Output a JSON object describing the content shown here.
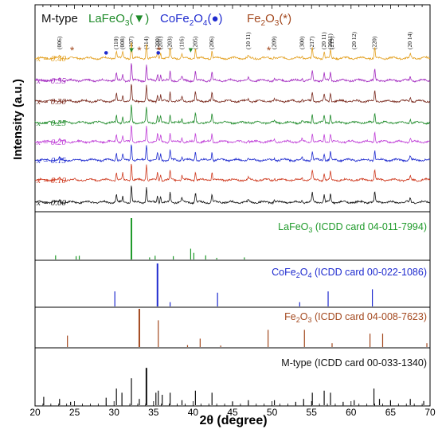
{
  "chart_data": {
    "type": "line",
    "xlabel": "2θ (degree)",
    "ylabel": "Intensity (a.u.)",
    "xlim": [
      20,
      70
    ],
    "x_ticks": [
      "20",
      "25",
      "30",
      "35",
      "40",
      "45",
      "50",
      "55",
      "60",
      "65",
      "70"
    ],
    "grid": false,
    "legend": {
      "label_m": "M-type",
      "label_la": "LaFeO",
      "sub_la": "3",
      "sym_la": "(▼)",
      "label_co": "CoFe",
      "sub_co_a": "2",
      "label_co_b": "O",
      "sub_co_b": "4",
      "sym_co": "(●)",
      "label_fe": "Fe",
      "sub_fe_a": "2",
      "label_fe_b": "O",
      "sub_fe_b": "3",
      "sym_fe": "(*)"
    },
    "hkl_labels": [
      {
        "text": "(006)",
        "x": 23.1
      },
      {
        "text": "(110)",
        "x": 30.3
      },
      {
        "text": "(008)",
        "x": 31.1
      },
      {
        "text": "(107)",
        "x": 32.2
      },
      {
        "text": "(114)",
        "x": 34.1
      },
      {
        "text": "(200)",
        "x": 35.5
      },
      {
        "text": "(201)",
        "x": 35.9
      },
      {
        "text": "(203)",
        "x": 37.1
      },
      {
        "text": "(116)",
        "x": 38.6
      },
      {
        "text": "(205)",
        "x": 40.3
      },
      {
        "text": "(206)",
        "x": 42.4
      },
      {
        "text": "(10 11)",
        "x": 47.0
      },
      {
        "text": "(209)",
        "x": 50.3
      },
      {
        "text": "(300)",
        "x": 53.8
      },
      {
        "text": "(217)",
        "x": 55.1
      },
      {
        "text": "(20 11)",
        "x": 56.6
      },
      {
        "text": "(2011)",
        "x": 57.4
      },
      {
        "text": "(219)",
        "x": 57.6
      },
      {
        "text": "(20 12)",
        "x": 60.4
      },
      {
        "text": "(220)",
        "x": 63.0
      },
      {
        "text": "(20 14)",
        "x": 67.5
      }
    ],
    "series": [
      {
        "name": "x = 0.40",
        "color": "#e3a020"
      },
      {
        "name": "x = 0.35",
        "color": "#a32ac0"
      },
      {
        "name": "x = 0.30",
        "color": "#7a2a1e"
      },
      {
        "name": "x = 0.25",
        "color": "#1f8b2a"
      },
      {
        "name": "x = 0.20",
        "color": "#c040d8"
      },
      {
        "name": "x = 0.15",
        "color": "#1f2bcf"
      },
      {
        "name": "x = 0.10",
        "color": "#cf3b20"
      },
      {
        "name": "x = 0.00",
        "color": "#111111"
      }
    ],
    "peaks": [
      [
        30.3,
        0.35
      ],
      [
        31.1,
        0.3
      ],
      [
        32.2,
        0.85
      ],
      [
        34.1,
        0.75
      ],
      [
        35.5,
        0.35
      ],
      [
        35.9,
        0.3
      ],
      [
        37.1,
        0.45
      ],
      [
        38.6,
        0.2
      ],
      [
        40.3,
        0.45
      ],
      [
        42.4,
        0.4
      ],
      [
        55.1,
        0.45
      ],
      [
        56.6,
        0.35
      ],
      [
        57.4,
        0.4
      ],
      [
        63.0,
        0.5
      ],
      [
        67.5,
        0.2
      ],
      [
        23.1,
        0.12
      ],
      [
        47.0,
        0.1
      ],
      [
        50.3,
        0.1
      ],
      [
        53.8,
        0.12
      ]
    ],
    "reference_panels": [
      {
        "label": "LaFeO",
        "sub": "3",
        "card": " (ICDD card 04-011-7994)",
        "color": "#1f9a2a",
        "lines": [
          [
            22.6,
            0.1
          ],
          [
            25.2,
            0.08
          ],
          [
            25.6,
            0.09
          ],
          [
            32.2,
            1.0
          ],
          [
            34.5,
            0.05
          ],
          [
            35.2,
            0.09
          ],
          [
            37.5,
            0.08
          ],
          [
            39.7,
            0.26
          ],
          [
            40.1,
            0.16
          ],
          [
            41.6,
            0.1
          ],
          [
            43.0,
            0.04
          ],
          [
            46.5,
            0.05
          ]
        ]
      },
      {
        "label": "CoFe",
        "sub": "2",
        "label_b": "O",
        "sub_b": "4",
        "card": " (ICDD card 00-022-1086)",
        "color": "#1f2bcf",
        "lines": [
          [
            30.1,
            0.35
          ],
          [
            35.5,
            1.0
          ],
          [
            37.1,
            0.1
          ],
          [
            43.1,
            0.32
          ],
          [
            53.5,
            0.1
          ],
          [
            57.1,
            0.35
          ],
          [
            62.7,
            0.4
          ]
        ]
      },
      {
        "label": "Fe",
        "sub": "2",
        "label_b": "O",
        "sub_b": "3",
        "card": " (ICDD card 04-008-7623)",
        "color": "#a3481e",
        "lines": [
          [
            24.1,
            0.3
          ],
          [
            33.2,
            1.0
          ],
          [
            35.6,
            0.7
          ],
          [
            39.3,
            0.05
          ],
          [
            40.9,
            0.22
          ],
          [
            43.5,
            0.04
          ],
          [
            49.5,
            0.45
          ],
          [
            54.1,
            0.45
          ],
          [
            57.6,
            0.1
          ],
          [
            62.4,
            0.35
          ],
          [
            64.0,
            0.35
          ],
          [
            69.6,
            0.1
          ]
        ]
      },
      {
        "label": "M-type",
        "card": " (ICDD card 00-033-1340)",
        "color": "#111111",
        "lines": [
          [
            21.1,
            0.2
          ],
          [
            23.1,
            0.15
          ],
          [
            24.5,
            0.08
          ],
          [
            29.0,
            0.18
          ],
          [
            30.3,
            0.4
          ],
          [
            31.0,
            0.3
          ],
          [
            32.2,
            0.65
          ],
          [
            33.2,
            0.15
          ],
          [
            34.1,
            0.9
          ],
          [
            35.3,
            0.3
          ],
          [
            35.6,
            0.35
          ],
          [
            36.1,
            0.25
          ],
          [
            37.1,
            0.3
          ],
          [
            38.6,
            0.12
          ],
          [
            40.3,
            0.35
          ],
          [
            42.4,
            0.3
          ],
          [
            45.0,
            0.08
          ],
          [
            47.0,
            0.12
          ],
          [
            50.3,
            0.12
          ],
          [
            53.0,
            0.08
          ],
          [
            54.0,
            0.15
          ],
          [
            55.1,
            0.3
          ],
          [
            56.6,
            0.35
          ],
          [
            57.4,
            0.3
          ],
          [
            59.0,
            0.08
          ],
          [
            60.4,
            0.12
          ],
          [
            62.9,
            0.4
          ],
          [
            63.6,
            0.15
          ],
          [
            65.0,
            0.12
          ],
          [
            67.5,
            0.15
          ],
          [
            69.2,
            0.1
          ]
        ]
      }
    ]
  }
}
